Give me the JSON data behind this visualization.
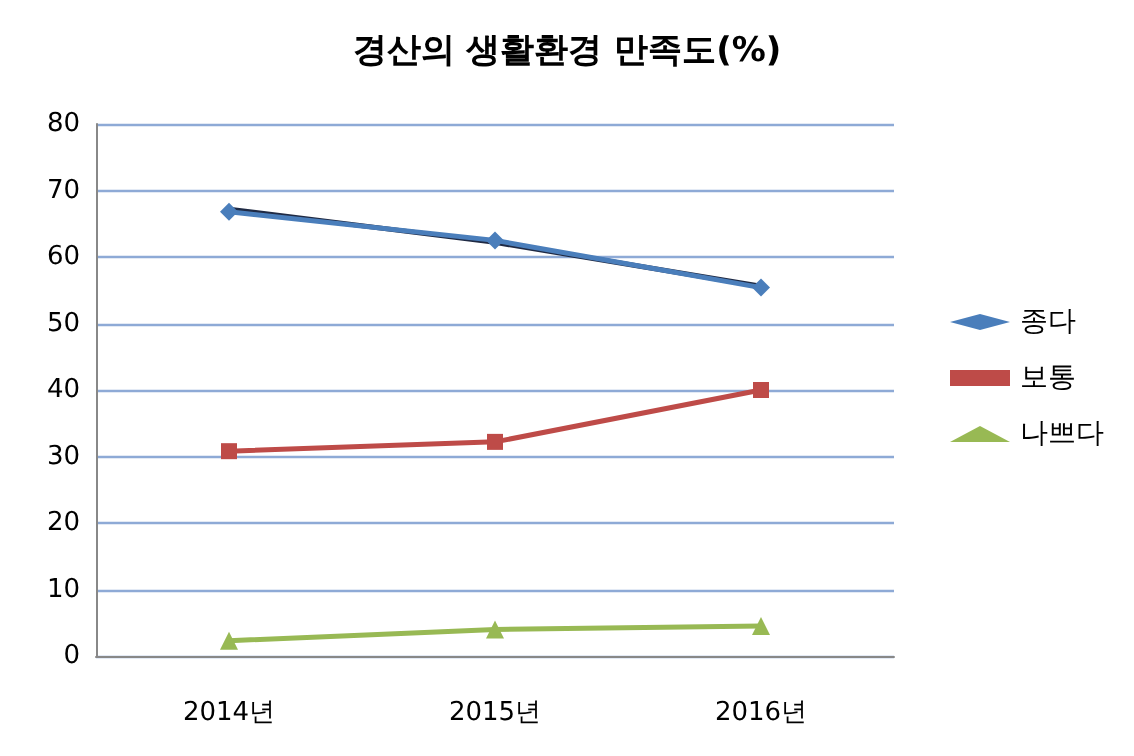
{
  "chart_data": {
    "type": "line",
    "title": "경산의 생활환경 만족도(%)",
    "categories": [
      "2014년",
      "2015년",
      "2016년"
    ],
    "series": [
      {
        "name": "종다",
        "color": "#4a7ebb",
        "values": [
          66.8,
          62.5,
          55.4
        ],
        "marker": "diamond"
      },
      {
        "name": "보통",
        "color": "#be4b48",
        "values": [
          30.8,
          32.2,
          40.0
        ],
        "marker": "square"
      },
      {
        "name": "나쁘다",
        "color": "#98b954",
        "values": [
          2.3,
          4.0,
          4.5
        ],
        "marker": "triangle"
      },
      {
        "color": "#1f2a44",
        "values": [
          67.2,
          62.2,
          55.6
        ],
        "marker": "none"
      }
    ],
    "ylim": [
      0,
      80
    ],
    "yticks": [
      0,
      10,
      20,
      30,
      40,
      50,
      60,
      70,
      80
    ],
    "grid": "y",
    "legend": "right"
  }
}
